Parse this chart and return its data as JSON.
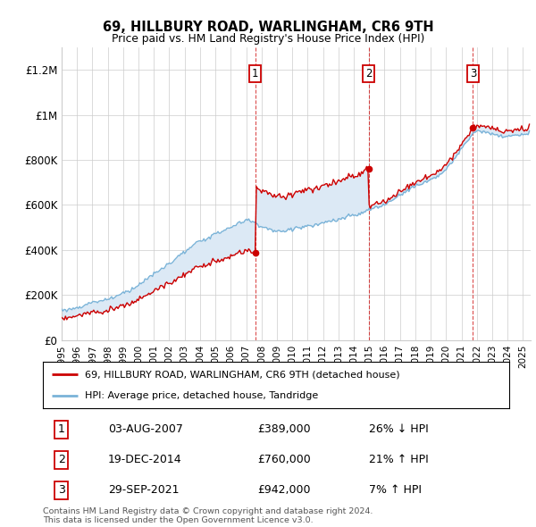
{
  "title": "69, HILLBURY ROAD, WARLINGHAM, CR6 9TH",
  "subtitle": "Price paid vs. HM Land Registry's House Price Index (HPI)",
  "legend_house": "69, HILLBURY ROAD, WARLINGHAM, CR6 9TH (detached house)",
  "legend_hpi": "HPI: Average price, detached house, Tandridge",
  "footer": "Contains HM Land Registry data © Crown copyright and database right 2024.\nThis data is licensed under the Open Government Licence v3.0.",
  "transactions": [
    {
      "num": 1,
      "date": "03-AUG-2007",
      "price": "£389,000",
      "price_val": 389000,
      "pct": "26% ↓ HPI",
      "year": 2007.583
    },
    {
      "num": 2,
      "date": "19-DEC-2014",
      "price": "£760,000",
      "price_val": 760000,
      "pct": "21% ↑ HPI",
      "year": 2014.958
    },
    {
      "num": 3,
      "date": "29-SEP-2021",
      "price": "£942,000",
      "price_val": 942000,
      "pct": "7% ↑ HPI",
      "year": 2021.747
    }
  ],
  "ylim": [
    0,
    1300000
  ],
  "xlim_start": 1995.0,
  "xlim_end": 2025.5,
  "background_color": "#ffffff",
  "shaded_color": "#dce9f5",
  "red_color": "#cc0000",
  "blue_color": "#7ab3d8",
  "grid_color": "#cccccc"
}
